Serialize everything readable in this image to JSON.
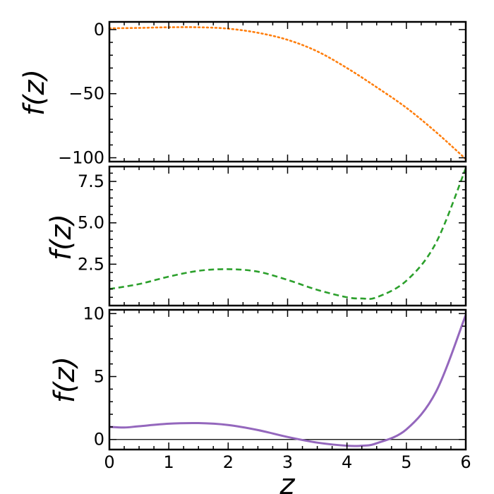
{
  "chart_data": [
    {
      "type": "line",
      "title": "",
      "xlabel": "",
      "ylabel": "f(z)",
      "xlim": [
        0,
        6
      ],
      "ylim": [
        -103,
        6
      ],
      "yticks": [
        0,
        -50,
        -100
      ],
      "ytick_labels": [
        "0",
        "−50",
        "−100"
      ],
      "xticks": [
        0,
        1,
        2,
        3,
        4,
        5,
        6
      ],
      "xtick_labels": [],
      "grid": false,
      "series": [
        {
          "color": "#ff7f0e",
          "style": "dotted",
          "x": [
            0,
            0.5,
            1,
            1.5,
            2,
            2.5,
            3,
            3.5,
            4,
            4.5,
            5,
            5.5,
            6
          ],
          "y": [
            1,
            1.3,
            1.8,
            1.8,
            0.7,
            -2.5,
            -8,
            -17,
            -30,
            -45,
            -61,
            -80,
            -101
          ]
        }
      ]
    },
    {
      "type": "line",
      "title": "",
      "xlabel": "",
      "ylabel": "f(z)",
      "xlim": [
        0,
        6
      ],
      "ylim": [
        0,
        8.4
      ],
      "yticks": [
        2.5,
        5.0,
        7.5
      ],
      "ytick_labels": [
        "2.5",
        "5.0",
        "7.5"
      ],
      "xticks": [
        0,
        1,
        2,
        3,
        4,
        5,
        6
      ],
      "xtick_labels": [],
      "grid": false,
      "series": [
        {
          "color": "#2ca02c",
          "style": "dashed",
          "x": [
            0,
            0.5,
            1,
            1.5,
            2,
            2.5,
            3,
            3.5,
            4,
            4.25,
            4.5,
            5,
            5.5,
            6
          ],
          "y": [
            1.0,
            1.3,
            1.75,
            2.1,
            2.2,
            2.05,
            1.55,
            0.95,
            0.5,
            0.43,
            0.5,
            1.5,
            3.8,
            8.3
          ]
        }
      ]
    },
    {
      "type": "line",
      "title": "",
      "xlabel": "z",
      "ylabel": "f(z)",
      "xlim": [
        0,
        6
      ],
      "ylim": [
        -0.8,
        10.3
      ],
      "yticks": [
        0,
        5,
        10
      ],
      "ytick_labels": [
        "0",
        "5",
        "10"
      ],
      "xticks": [
        0,
        1,
        2,
        3,
        4,
        5,
        6
      ],
      "xtick_labels": [
        "0",
        "1",
        "2",
        "3",
        "4",
        "5",
        "6"
      ],
      "grid": false,
      "reference_line_y": 0,
      "series": [
        {
          "color": "#9467bd",
          "style": "solid",
          "x": [
            0,
            0.25,
            0.5,
            1,
            1.5,
            2,
            2.5,
            3,
            3.5,
            4,
            4.25,
            4.5,
            5,
            5.5,
            6
          ],
          "y": [
            1.0,
            0.95,
            1.05,
            1.25,
            1.3,
            1.15,
            0.75,
            0.2,
            -0.25,
            -0.5,
            -0.5,
            -0.3,
            0.8,
            3.8,
            9.9
          ]
        }
      ]
    }
  ]
}
